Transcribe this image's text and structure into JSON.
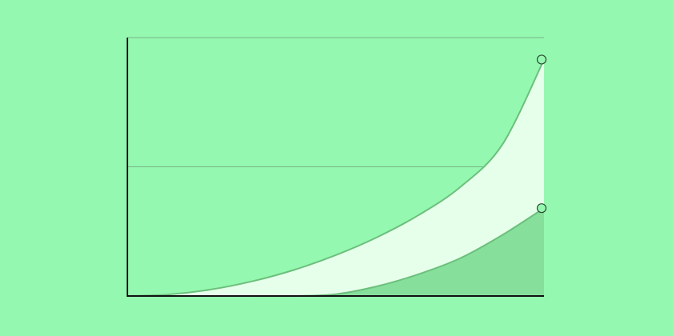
{
  "colors": {
    "background": "#95f8b0",
    "upper_fill": "#e6ffea",
    "lower_fill": "#86e09c",
    "curve_stroke": "#6cbf7c",
    "axis": "#111111",
    "grid": "#6f9f7c",
    "end_marker_fill": "#95f8b0",
    "end_marker_stroke": "#2b4a33"
  },
  "chart_data": {
    "type": "area",
    "title": "",
    "xlabel": "",
    "ylabel": "",
    "x": [
      0,
      0.1,
      0.2,
      0.3,
      0.4,
      0.5,
      0.6,
      0.7,
      0.8,
      0.9,
      1.0
    ],
    "xlim": [
      0,
      1
    ],
    "ylim": [
      0,
      1
    ],
    "grid": {
      "horizontal": [
        0.5,
        1.0
      ],
      "vertical": false
    },
    "legend": "none",
    "series": [
      {
        "values": [
          0.0,
          0.006,
          0.025,
          0.057,
          0.101,
          0.158,
          0.228,
          0.314,
          0.423,
          0.586,
          0.915
        ]
      },
      {
        "values": [
          0.0,
          0.0,
          0.0,
          0.0,
          0.0,
          0.007,
          0.038,
          0.085,
          0.147,
          0.236,
          0.34
        ]
      }
    ],
    "end_markers": true
  }
}
